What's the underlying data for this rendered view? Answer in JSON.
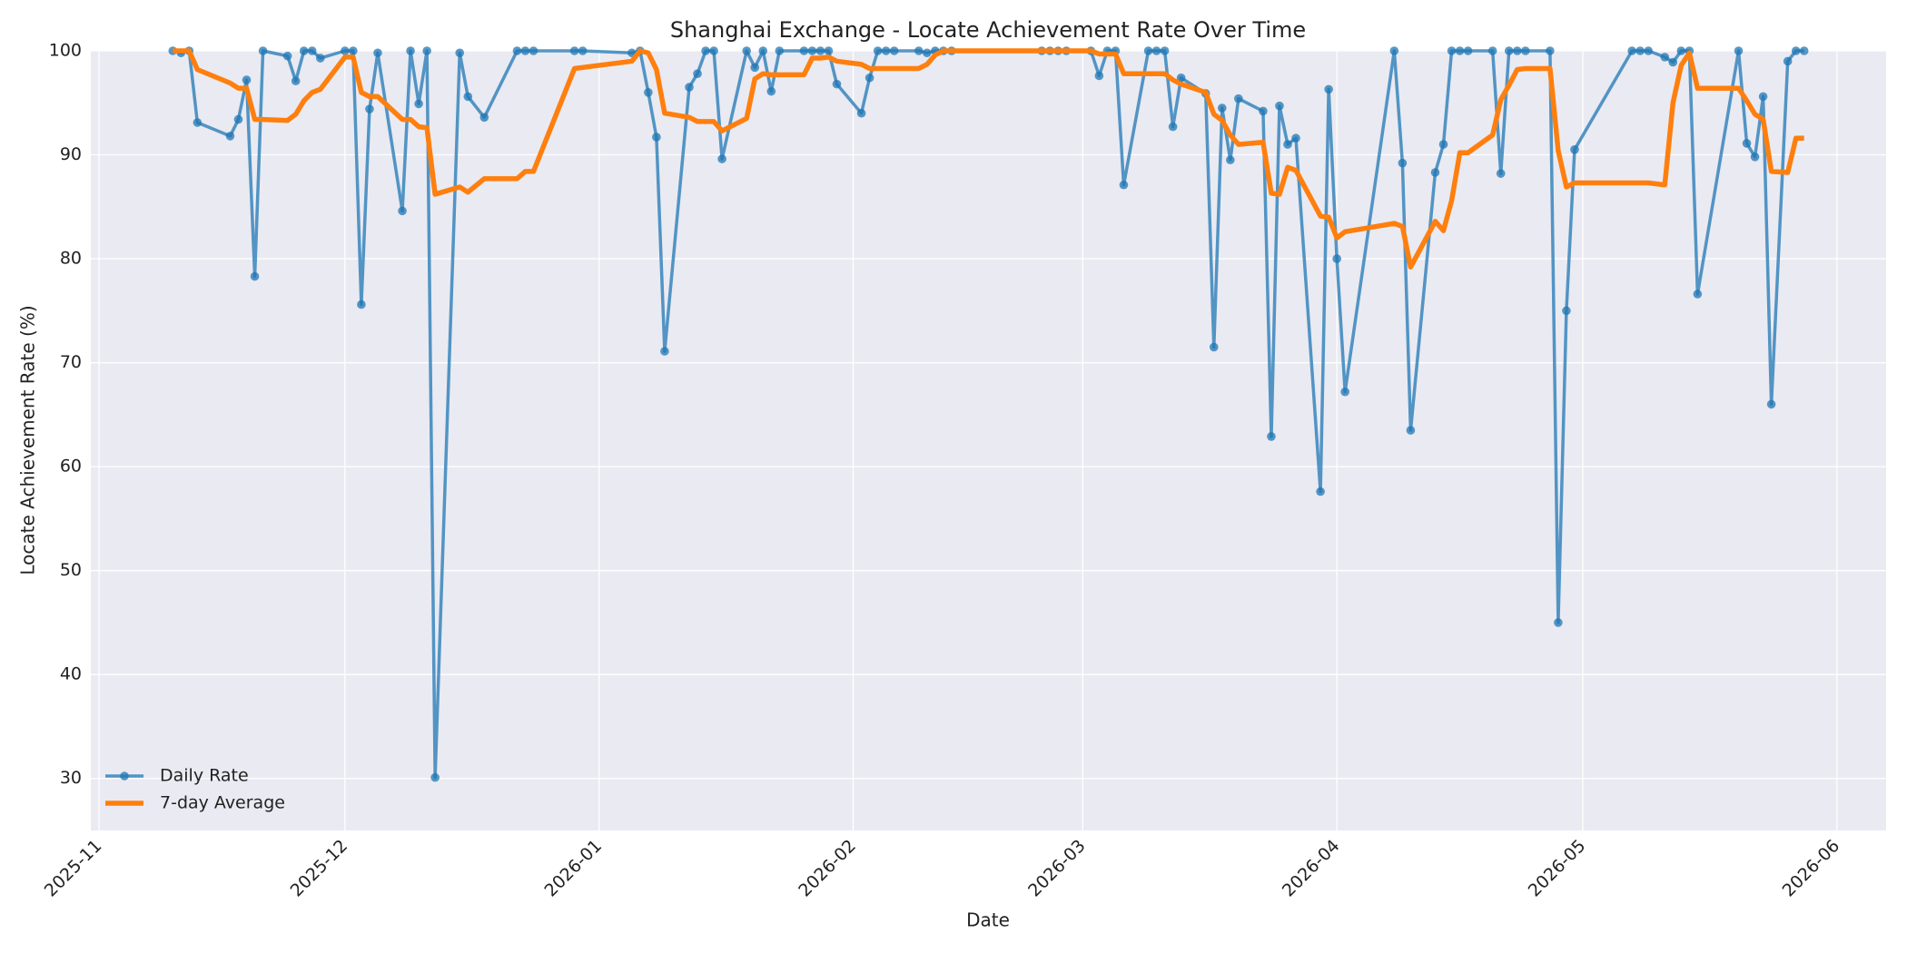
{
  "chart_data": {
    "type": "line",
    "title": "Shanghai Exchange - Locate Achievement Rate Over Time",
    "xlabel": "Date",
    "ylabel": "Locate Achievement Rate (%)",
    "x": [
      "2025-11-10",
      "2025-11-11",
      "2025-11-12",
      "2025-11-13",
      "2025-11-17",
      "2025-11-18",
      "2025-11-19",
      "2025-11-20",
      "2025-11-21",
      "2025-11-24",
      "2025-11-25",
      "2025-11-26",
      "2025-11-27",
      "2025-11-28",
      "2025-12-01",
      "2025-12-02",
      "2025-12-03",
      "2025-12-04",
      "2025-12-05",
      "2025-12-08",
      "2025-12-09",
      "2025-12-10",
      "2025-12-11",
      "2025-12-12",
      "2025-12-15",
      "2025-12-16",
      "2025-12-18",
      "2025-12-22",
      "2025-12-23",
      "2025-12-24",
      "2025-12-29",
      "2025-12-30",
      "2026-01-05",
      "2026-01-06",
      "2026-01-07",
      "2026-01-08",
      "2026-01-09",
      "2026-01-12",
      "2026-01-13",
      "2026-01-14",
      "2026-01-15",
      "2026-01-16",
      "2026-01-19",
      "2026-01-20",
      "2026-01-21",
      "2026-01-22",
      "2026-01-23",
      "2026-01-26",
      "2026-01-27",
      "2026-01-28",
      "2026-01-29",
      "2026-01-30",
      "2026-02-02",
      "2026-02-03",
      "2026-02-04",
      "2026-02-05",
      "2026-02-06",
      "2026-02-09",
      "2026-02-10",
      "2026-02-11",
      "2026-02-12",
      "2026-02-13",
      "2026-02-24",
      "2026-02-25",
      "2026-02-26",
      "2026-02-27",
      "2026-03-02",
      "2026-03-03",
      "2026-03-04",
      "2026-03-05",
      "2026-03-06",
      "2026-03-09",
      "2026-03-10",
      "2026-03-11",
      "2026-03-12",
      "2026-03-13",
      "2026-03-16",
      "2026-03-17",
      "2026-03-18",
      "2026-03-19",
      "2026-03-20",
      "2026-03-23",
      "2026-03-24",
      "2026-03-25",
      "2026-03-26",
      "2026-03-27",
      "2026-03-30",
      "2026-03-31",
      "2026-04-01",
      "2026-04-02",
      "2026-04-08",
      "2026-04-09",
      "2026-04-10",
      "2026-04-13",
      "2026-04-14",
      "2026-04-15",
      "2026-04-16",
      "2026-04-17",
      "2026-04-20",
      "2026-04-21",
      "2026-04-22",
      "2026-04-23",
      "2026-04-24",
      "2026-04-27",
      "2026-04-28",
      "2026-04-29",
      "2026-04-30",
      "2026-05-07",
      "2026-05-08",
      "2026-05-09",
      "2026-05-11",
      "2026-05-12",
      "2026-05-13",
      "2026-05-14",
      "2026-05-15",
      "2026-05-20",
      "2026-05-21",
      "2026-05-22",
      "2026-05-23",
      "2026-05-24",
      "2026-05-26",
      "2026-05-27",
      "2026-05-28"
    ],
    "series": [
      {
        "name": "Daily Rate",
        "color": "#1f77b4",
        "marker": "o",
        "values": [
          100,
          99.8,
          100,
          93.1,
          91.8,
          93.4,
          97.2,
          78.3,
          100,
          99.5,
          97.1,
          100,
          100,
          99.3,
          100,
          100,
          75.6,
          94.4,
          99.8,
          84.6,
          100,
          94.9,
          100,
          30.1,
          99.8,
          95.6,
          93.6,
          100,
          100,
          100,
          100,
          100,
          99.8,
          100,
          96.0,
          91.7,
          71.1,
          96.5,
          97.8,
          100,
          100,
          89.6,
          100,
          98.4,
          100,
          96.1,
          100,
          100,
          100,
          100,
          100,
          96.8,
          94.0,
          97.4,
          100,
          100,
          100,
          100,
          99.8,
          100,
          100,
          100,
          100,
          100,
          100,
          100,
          100,
          97.6,
          100,
          100,
          87.1,
          100,
          100,
          100,
          92.7,
          97.4,
          95.9,
          71.5,
          94.5,
          89.5,
          95.4,
          94.2,
          62.9,
          94.7,
          91.0,
          91.6,
          57.6,
          96.3,
          80.0,
          67.2,
          100,
          89.2,
          63.5,
          88.3,
          91.0,
          100,
          100,
          100,
          100,
          88.2,
          100,
          100,
          100,
          100,
          45.0,
          75.0,
          90.5,
          100,
          100,
          100,
          99.4,
          98.9,
          100,
          100,
          76.6,
          100,
          91.1,
          89.8,
          95.6,
          66.0,
          99.0,
          100,
          100
        ]
      },
      {
        "name": "7-day Average",
        "color": "#ff7f0e",
        "values": [
          100,
          100,
          100,
          98.2,
          96.9,
          96.4,
          96.4,
          93.4,
          93.4,
          93.3,
          93.9,
          95.2,
          96.0,
          96.3,
          99.4,
          99.4,
          96.0,
          95.6,
          95.6,
          93.4,
          93.4,
          92.7,
          92.6,
          86.2,
          86.9,
          86.4,
          87.7,
          87.7,
          88.4,
          88.4,
          98.3,
          98.4,
          99.0,
          100,
          99.8,
          98.2,
          94.0,
          93.6,
          93.2,
          93.2,
          93.2,
          92.3,
          93.5,
          97.3,
          97.8,
          97.7,
          97.7,
          97.7,
          99.3,
          99.3,
          99.4,
          99.0,
          98.7,
          98.3,
          98.3,
          98.3,
          98.3,
          98.3,
          98.7,
          99.6,
          100,
          100,
          100,
          100,
          100,
          100,
          100,
          99.7,
          99.7,
          99.7,
          97.8,
          97.8,
          97.8,
          97.8,
          97.2,
          96.8,
          96.0,
          93.9,
          93.3,
          91.9,
          91.0,
          91.2,
          86.3,
          86.2,
          88.8,
          88.5,
          84.1,
          84.0,
          82.0,
          82.6,
          83.4,
          83.1,
          79.2,
          83.6,
          82.7,
          85.6,
          90.2,
          90.2,
          91.9,
          95.3,
          96.7,
          98.2,
          98.3,
          98.3,
          90.4,
          86.9,
          87.3,
          87.3,
          87.3,
          87.3,
          87.1,
          95.0,
          98.6,
          99.8,
          96.4,
          96.4,
          95.2,
          93.9,
          93.4,
          88.4,
          88.3,
          91.6,
          91.6
        ]
      }
    ],
    "xlim": [
      "2025-10-31",
      "2026-06-07"
    ],
    "xticks": [
      {
        "value": "2025-11-01",
        "label": "2025-11"
      },
      {
        "value": "2025-12-01",
        "label": "2025-12"
      },
      {
        "value": "2026-01-01",
        "label": "2026-01"
      },
      {
        "value": "2026-02-01",
        "label": "2026-02"
      },
      {
        "value": "2026-03-01",
        "label": "2026-03"
      },
      {
        "value": "2026-04-01",
        "label": "2026-04"
      },
      {
        "value": "2026-05-01",
        "label": "2026-05"
      },
      {
        "value": "2026-06-01",
        "label": "2026-06"
      }
    ],
    "ylim": [
      25,
      100
    ],
    "yticks": [
      30,
      40,
      50,
      60,
      70,
      80,
      90,
      100
    ],
    "grid": true,
    "legend": "lower left"
  }
}
